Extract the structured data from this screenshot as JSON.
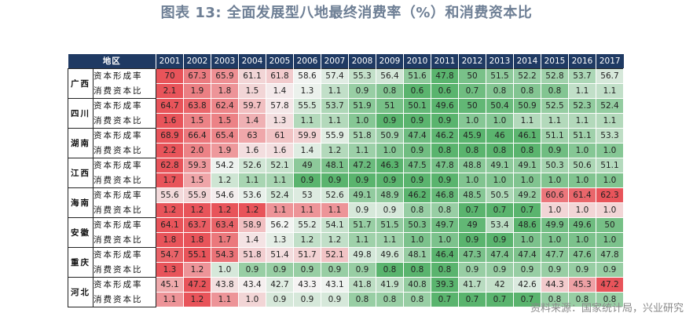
{
  "title": "图表 13: 全面发展型八地最终消费率（%）和消费资本比",
  "source": "资料来源：国家统计局，兴业研究",
  "table": {
    "header_region": "地区",
    "years": [
      "2001",
      "2002",
      "2003",
      "2004",
      "2005",
      "2006",
      "2007",
      "2008",
      "2009",
      "2010",
      "2011",
      "2012",
      "2013",
      "2014",
      "2015",
      "2016",
      "2017"
    ],
    "indicators": [
      "资本形成率",
      "消费资本比"
    ],
    "regions": [
      {
        "name": "广西",
        "capital_formation": [
          "70",
          "67.3",
          "65.9",
          "61.1",
          "61.8",
          "58.6",
          "57.4",
          "55.3",
          "56.4",
          "51.6",
          "47.8",
          "50",
          "51.5",
          "52.2",
          "52.8",
          "53.7",
          "56.7"
        ],
        "consumption_capital": [
          "2.1",
          "1.9",
          "1.8",
          "1.5",
          "1.4",
          "1.3",
          "1.1",
          "0.9",
          "0.8",
          "0.6",
          "0.6",
          "0.7",
          "0.8",
          "0.8",
          "0.8",
          "1.1",
          "1.1"
        ]
      },
      {
        "name": "四川",
        "capital_formation": [
          "64.7",
          "63.8",
          "62.4",
          "59.7",
          "57.8",
          "55.5",
          "53.7",
          "51.9",
          "51",
          "50.1",
          "49.6",
          "50",
          "50.4",
          "50.9",
          "52.5",
          "52.3",
          "52.4"
        ],
        "consumption_capital": [
          "1.6",
          "1.5",
          "1.5",
          "1.4",
          "1.3",
          "1.1",
          "1.1",
          "1.0",
          "0.9",
          "0.9",
          "0.9",
          "1.0",
          "1.0",
          "1.1",
          "1.1",
          "1.1",
          "1.1"
        ]
      },
      {
        "name": "湖南",
        "capital_formation": [
          "68.9",
          "66.4",
          "65.4",
          "63",
          "61",
          "59.9",
          "55.9",
          "51.8",
          "50.9",
          "47.4",
          "46.2",
          "45.9",
          "46",
          "46.1",
          "51.1",
          "51.1",
          "53.3"
        ],
        "consumption_capital": [
          "2.2",
          "2.0",
          "1.9",
          "1.6",
          "1.6",
          "1.4",
          "1.2",
          "1.1",
          "1.0",
          "0.9",
          "0.8",
          "0.8",
          "0.8",
          "0.8",
          "0.9",
          "1.0",
          "1.0"
        ]
      },
      {
        "name": "江西",
        "capital_formation": [
          "62.8",
          "59.3",
          "54.2",
          "52.6",
          "52.1",
          "49",
          "48.1",
          "47.2",
          "46.3",
          "47.5",
          "47.8",
          "48.8",
          "49.1",
          "49.1",
          "50.3",
          "50.6",
          "51.1"
        ],
        "consumption_capital": [
          "1.7",
          "1.5",
          "1.2",
          "1.1",
          "1.1",
          "0.9",
          "0.9",
          "0.9",
          "0.9",
          "0.9",
          "0.9",
          "1.0",
          "1.0",
          "1.0",
          "1.0",
          "1.0",
          "1.0"
        ]
      },
      {
        "name": "海南",
        "capital_formation": [
          "55.6",
          "55.9",
          "54.6",
          "53.6",
          "52.4",
          "53",
          "52.6",
          "49.1",
          "48.9",
          "46.2",
          "46.8",
          "48.5",
          "50.5",
          "49.2",
          "60.6",
          "61.4",
          "62.3"
        ],
        "consumption_capital": [
          "1.2",
          "1.2",
          "1.2",
          "1.2",
          "1.1",
          "1.1",
          "1.1",
          "0.9",
          "0.9",
          "0.8",
          "0.8",
          "0.7",
          "0.7",
          "0.7",
          "1.0",
          "1.0",
          "1.0"
        ]
      },
      {
        "name": "安徽",
        "capital_formation": [
          "64.1",
          "63.7",
          "63.4",
          "58.9",
          "56.2",
          "55.2",
          "54.1",
          "51.7",
          "51.5",
          "50.3",
          "49.7",
          "49",
          "53.4",
          "48.6",
          "49.9",
          "49.6",
          "50"
        ],
        "consumption_capital": [
          "1.8",
          "1.8",
          "1.7",
          "1.4",
          "1.3",
          "1.2",
          "1.2",
          "1.1",
          "1.1",
          "1.0",
          "1.0",
          "0.9",
          "0.9",
          "1.0",
          "1.0",
          "1.0",
          "1.0"
        ]
      },
      {
        "name": "重庆",
        "capital_formation": [
          "54.7",
          "55.1",
          "54.3",
          "51.8",
          "51.4",
          "51.7",
          "52.1",
          "49.8",
          "49.6",
          "48.1",
          "46.4",
          "47.3",
          "47.4",
          "47.4",
          "47.7",
          "47.6",
          "47.8"
        ],
        "consumption_capital": [
          "1.3",
          "1.2",
          "1.0",
          "0.9",
          "0.9",
          "0.9",
          "0.9",
          "0.9",
          "0.8",
          "0.8",
          "0.8",
          "0.9",
          "0.9",
          "0.9",
          "0.9",
          "0.9",
          "0.9"
        ]
      },
      {
        "name": "河北",
        "capital_formation": [
          "45.1",
          "47.2",
          "43.8",
          "43.4",
          "42.7",
          "43.3",
          "43.1",
          "41.8",
          "41.9",
          "40.8",
          "39.3",
          "41.7",
          "42",
          "42.6",
          "44.3",
          "45.3",
          "47.2"
        ],
        "consumption_capital": [
          "1.1",
          "1.2",
          "1.1",
          "1.0",
          "0.9",
          "0.9",
          "0.9",
          "0.8",
          "0.8",
          "0.8",
          "0.7",
          "0.7",
          "0.7",
          "0.7",
          "0.8",
          "0.8",
          "0.8"
        ]
      }
    ]
  },
  "colors": {
    "title": "#6e7f95",
    "header_bg": "#1f3a63",
    "high_red": "#e8545a",
    "mid_white": "#f5f5f5",
    "low_green": "#5ab46e"
  }
}
